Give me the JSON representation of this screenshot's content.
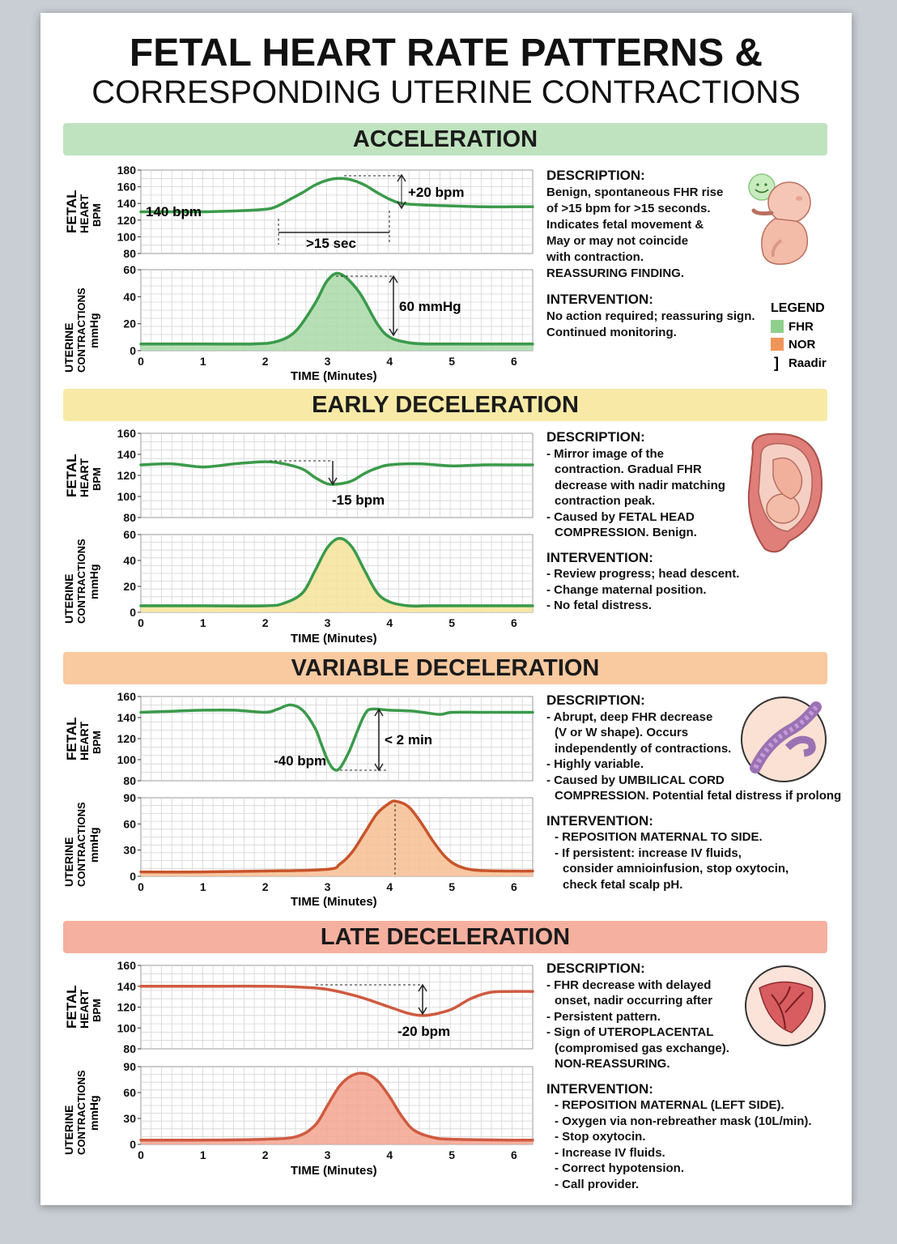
{
  "title": "FETAL HEART RATE PATTERNS &",
  "subtitle": "CORRESPONDING UTERINE CONTRACTIONS",
  "colors": {
    "green": "#3a9a4a",
    "orange": "#d4622e",
    "red": "#cf5a40",
    "green_fill": "#a9d9a8",
    "yellow_fill": "#f6e39a",
    "orange_fill": "#f7be92",
    "red_fill": "#f3a58f"
  },
  "legend": {
    "title": "LEGEND",
    "items": [
      {
        "label": "FHR",
        "color": "#8fcf8c"
      },
      {
        "label": "NOR",
        "color": "#f0955a"
      }
    ],
    "marker_label": "Raadir"
  },
  "sections": [
    {
      "banner": "ACCELERATION",
      "banner_color": "#bfe3be",
      "fhr_ylabel": [
        "FETAL",
        "HEART",
        "BPM"
      ],
      "uc_ylabel": [
        "UTERINE",
        "CONTRACTIONS",
        "mmHg"
      ],
      "xlabel": "TIME (Minutes)",
      "fhr_annotations": [
        "140 bpm",
        "+20 bpm",
        ">15 sec"
      ],
      "uc_annotations": [
        "60 mmHg"
      ],
      "description_title": "DESCRIPTION:",
      "description": [
        "Benign, spontaneous FHR rise",
        "of >15 bpm for >15 seconds.",
        "Indicates fetal movement &",
        "May or may not coincide",
        "with contraction.",
        "REASSURING FINDING."
      ],
      "intervention_title": "INTERVENTION:",
      "intervention": [
        "No action required; reassuring sign.",
        "Continued monitoring."
      ],
      "illustration": "fetus-icon"
    },
    {
      "banner": "EARLY DECELERATION",
      "banner_color": "#f8eaa6",
      "fhr_ylabel": [
        "FETAL",
        "HEART",
        "BPM"
      ],
      "uc_ylabel": [
        "UTERINE",
        "CONTRACTIONS",
        "mmHg"
      ],
      "xlabel": "TIME (Minutes)",
      "fhr_annotations": [
        "-15 bpm"
      ],
      "uc_annotations": [],
      "description_title": "DESCRIPTION:",
      "description": [
        "- Mirror image of the",
        "contraction. Gradual FHR",
        "decrease with nadir matching",
        "contraction peak.",
        "- Caused by FETAL HEAD",
        "COMPRESSION. Benign."
      ],
      "intervention_title": "INTERVENTION:",
      "intervention": [
        "- Review progress; head descent.",
        "- Change maternal position.",
        "- No fetal distress."
      ],
      "illustration": "fetus-in-uterus-icon"
    },
    {
      "banner": "VARIABLE DECELERATION",
      "banner_color": "#f9c9a0",
      "fhr_ylabel": [
        "FETAL",
        "HEART",
        "BPM"
      ],
      "uc_ylabel": [
        "UTERINE",
        "CONTRACTIONS",
        "mmHg"
      ],
      "xlabel": "TIME (Minutes)",
      "fhr_annotations": [
        "-40 bpm",
        "< 2 min"
      ],
      "uc_annotations": [],
      "description_title": "DESCRIPTION:",
      "description": [
        "- Abrupt, deep FHR decrease",
        "(V or W shape). Occurs",
        "independently of contractions.",
        "- Highly variable.",
        "- Caused by UMBILICAL CORD",
        "COMPRESSION. Potential fetal distress if prolong"
      ],
      "intervention_title": "INTERVENTION:",
      "intervention": [
        "- REPOSITION MATERNAL TO SIDE.",
        "- If persistent: increase IV fluids,",
        "consider amnioinfusion, stop oxytocin,",
        "check fetal scalp pH."
      ],
      "illustration": "umbilical-cord-icon"
    },
    {
      "banner": "LATE DECELERATION",
      "banner_color": "#f6b0a0",
      "fhr_ylabel": [
        "FETAL",
        "HEART",
        "BPM"
      ],
      "uc_ylabel": [
        "UTERINE",
        "CONTRACTIONS",
        "mmHg"
      ],
      "xlabel": "TIME (Minutes)",
      "fhr_annotations": [
        "-20 bpm"
      ],
      "uc_annotations": [],
      "description_title": "DESCRIPTION:",
      "description": [
        "- FHR decrease with delayed",
        "onset, nadir occurring after",
        "- Persistent pattern.",
        "- Sign of UTEROPLACENTAL",
        "(compromised gas exchange).",
        "NON-REASSURING."
      ],
      "intervention_title": "INTERVENTION:",
      "intervention": [
        "- REPOSITION MATERNAL (LEFT SIDE).",
        "- Oxygen via non-rebreather mask (10L/min).",
        "- Stop oxytocin.",
        "- Increase IV fluids.",
        "- Correct hypotension.",
        "- Call provider."
      ],
      "illustration": "placenta-icon"
    }
  ],
  "chart_data": [
    {
      "type": "line",
      "name": "acceleration-fhr",
      "ylim": [
        80,
        180
      ],
      "yticks": [
        80,
        100,
        120,
        140,
        160,
        180
      ],
      "xlim": [
        0,
        6.3
      ],
      "x": [
        0,
        0.5,
        1,
        1.5,
        2,
        2.2,
        2.4,
        2.6,
        2.8,
        3,
        3.2,
        3.4,
        3.6,
        3.8,
        4,
        4.2,
        4.6,
        5,
        5.5,
        6,
        6.3
      ],
      "y": [
        130,
        130,
        130,
        131,
        133,
        137,
        145,
        153,
        162,
        168,
        170,
        168,
        162,
        153,
        145,
        140,
        138,
        137,
        136,
        136,
        136
      ]
    },
    {
      "type": "area",
      "name": "acceleration-uc",
      "ylim": [
        0,
        60
      ],
      "yticks": [
        0,
        20,
        40,
        60
      ],
      "xticks": [
        0,
        1,
        2,
        3,
        4,
        5,
        6
      ],
      "xlim": [
        0,
        6.3
      ],
      "x": [
        0,
        1,
        1.8,
        2.2,
        2.5,
        2.8,
        3,
        3.2,
        3.5,
        3.8,
        4,
        4.3,
        4.6,
        5,
        6,
        6.3
      ],
      "y": [
        5,
        5,
        5,
        7,
        15,
        35,
        52,
        57,
        44,
        20,
        10,
        6,
        5,
        5,
        5,
        5
      ]
    },
    {
      "type": "line",
      "name": "early-fhr",
      "ylim": [
        80,
        160
      ],
      "yticks": [
        80,
        100,
        120,
        140,
        160
      ],
      "xlim": [
        0,
        6.3
      ],
      "x": [
        0,
        0.5,
        1,
        1.5,
        2,
        2.3,
        2.6,
        2.8,
        3,
        3.2,
        3.4,
        3.6,
        3.8,
        4,
        4.5,
        5,
        5.5,
        6,
        6.3
      ],
      "y": [
        130,
        131,
        128,
        131,
        133,
        131,
        126,
        118,
        112,
        112,
        115,
        122,
        127,
        130,
        131,
        129,
        130,
        130,
        130
      ]
    },
    {
      "type": "area",
      "name": "early-uc",
      "ylim": [
        0,
        60
      ],
      "yticks": [
        0,
        20,
        40,
        60
      ],
      "xticks": [
        0,
        1,
        2,
        3,
        4,
        5,
        6
      ],
      "xlim": [
        0,
        6.3
      ],
      "x": [
        0,
        1,
        2,
        2.3,
        2.6,
        2.8,
        3,
        3.2,
        3.4,
        3.6,
        3.8,
        4,
        4.3,
        4.6,
        5,
        6,
        6.3
      ],
      "y": [
        5,
        5,
        5,
        7,
        15,
        32,
        50,
        57,
        50,
        32,
        15,
        8,
        5,
        5,
        5,
        5,
        5
      ]
    },
    {
      "type": "line",
      "name": "variable-fhr",
      "ylim": [
        80,
        160
      ],
      "yticks": [
        80,
        100,
        120,
        140,
        160
      ],
      "xlim": [
        0,
        6.3
      ],
      "x": [
        0,
        0.5,
        1,
        1.5,
        2,
        2.2,
        2.4,
        2.6,
        2.8,
        2.9,
        3,
        3.1,
        3.2,
        3.35,
        3.5,
        3.6,
        3.7,
        4,
        4.4,
        4.8,
        5,
        5.5,
        6,
        6.3
      ],
      "y": [
        145,
        146,
        147,
        147,
        145,
        148,
        152,
        147,
        130,
        115,
        100,
        91,
        92,
        108,
        130,
        143,
        148,
        147,
        146,
        143,
        145,
        145,
        145,
        145
      ]
    },
    {
      "type": "area",
      "name": "variable-uc",
      "ylim": [
        0,
        90
      ],
      "yticks": [
        0,
        30,
        60,
        90
      ],
      "xticks": [
        0,
        1,
        2,
        3,
        4,
        5,
        6
      ],
      "xlim": [
        0,
        6.3
      ],
      "x": [
        0,
        1,
        2,
        3,
        3.2,
        3.4,
        3.6,
        3.8,
        4,
        4.1,
        4.3,
        4.5,
        4.7,
        4.9,
        5.1,
        5.4,
        6,
        6.3
      ],
      "y": [
        5,
        5,
        6,
        8,
        14,
        28,
        50,
        72,
        84,
        86,
        80,
        62,
        40,
        22,
        12,
        7,
        6,
        6
      ]
    },
    {
      "type": "line",
      "name": "late-fhr",
      "ylim": [
        80,
        160
      ],
      "yticks": [
        80,
        100,
        120,
        140,
        160
      ],
      "xlim": [
        0,
        6.3
      ],
      "x": [
        0,
        1,
        2,
        2.6,
        3,
        3.5,
        4,
        4.3,
        4.5,
        4.7,
        5,
        5.3,
        5.6,
        5.9,
        6.3
      ],
      "y": [
        140,
        140,
        140,
        139,
        137,
        130,
        120,
        114,
        112,
        113,
        118,
        128,
        134,
        135,
        135
      ]
    },
    {
      "type": "area",
      "name": "late-uc",
      "ylim": [
        0,
        90
      ],
      "yticks": [
        0,
        30,
        60,
        90
      ],
      "xticks": [
        0,
        1,
        2,
        3,
        4,
        5,
        6
      ],
      "xlim": [
        0,
        6.3
      ],
      "x": [
        0,
        1,
        2,
        2.5,
        2.8,
        3,
        3.2,
        3.4,
        3.6,
        3.8,
        4,
        4.2,
        4.4,
        4.7,
        5,
        6,
        6.3
      ],
      "y": [
        5,
        5,
        6,
        9,
        22,
        45,
        68,
        80,
        82,
        74,
        55,
        32,
        16,
        8,
        6,
        5,
        5
      ]
    }
  ]
}
